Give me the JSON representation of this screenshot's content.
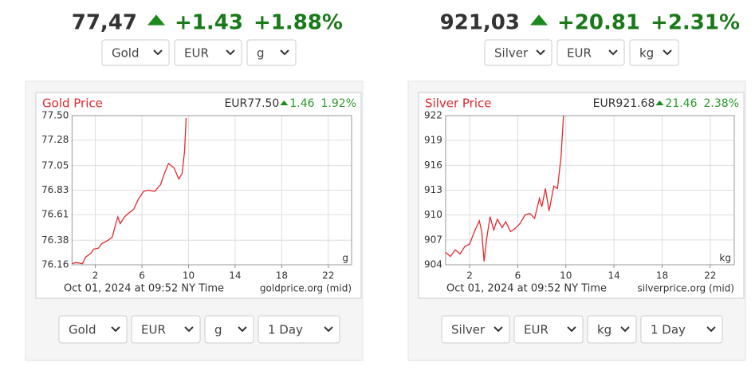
{
  "widgets": [
    {
      "price": "77,47",
      "change": "+1.43",
      "change_pct": "+1.88%",
      "selects": [
        "Gold",
        "EUR",
        "g"
      ],
      "bottom_selects": [
        "Gold",
        "EUR",
        "g",
        "1 Day"
      ]
    },
    {
      "price": "921,03",
      "change": "+20.81",
      "change_pct": "+2.31%",
      "selects": [
        "Silver",
        "EUR",
        "kg"
      ],
      "bottom_selects": [
        "Silver",
        "EUR",
        "kg",
        "1 Day"
      ]
    }
  ],
  "chart_data": [
    {
      "type": "line",
      "title": "Gold Price",
      "header_price": "EUR77.50",
      "header_change": "1.46",
      "header_pct": "1.92%",
      "unit": "g",
      "footer_left": "Oct 01, 2024 at 09:52 NY Time",
      "footer_right": "goldprice.org (mid)",
      "color": "#e8282b",
      "x": [
        0,
        0.34,
        0.9,
        1.17,
        1.6,
        1.86,
        2.28,
        2.55,
        3.1,
        3.45,
        3.66,
        3.93,
        4.14,
        4.5,
        4.83,
        5.3,
        5.7,
        6.14,
        6.55,
        7.1,
        7.6,
        7.93,
        8.28,
        8.76,
        9.17,
        9.45,
        9.66,
        9.8
      ],
      "values": [
        76.17,
        76.18,
        76.17,
        76.23,
        76.26,
        76.3,
        76.31,
        76.35,
        76.38,
        76.41,
        76.49,
        76.59,
        76.53,
        76.59,
        76.62,
        76.66,
        76.75,
        76.82,
        76.83,
        76.82,
        76.88,
        76.98,
        77.07,
        77.03,
        76.93,
        76.98,
        77.18,
        77.48
      ],
      "xlim": [
        0,
        24
      ],
      "xticks": [
        2,
        6,
        10,
        14,
        18,
        22
      ],
      "ylim": [
        76.16,
        77.5
      ],
      "yticks": [
        76.16,
        76.38,
        76.61,
        76.83,
        77.05,
        77.28,
        {
          "value": 77.5,
          "label": "77.50"
        }
      ],
      "grid": true
    },
    {
      "type": "line",
      "title": "Silver Price",
      "header_price": "EUR921.68",
      "header_change": "21.46",
      "header_pct": "2.38%",
      "unit": "kg",
      "footer_left": "Oct 01, 2024 at 09:52 NY Time",
      "footer_right": "silverprice.org (mid)",
      "color": "#e8282b",
      "x": [
        0,
        0.4,
        0.8,
        1.2,
        1.6,
        2.0,
        2.4,
        2.8,
        3.0,
        3.2,
        3.4,
        3.7,
        4.0,
        4.3,
        4.7,
        5.0,
        5.4,
        5.8,
        6.2,
        6.6,
        7.0,
        7.4,
        7.8,
        8.0,
        8.3,
        8.6,
        9.0,
        9.3,
        9.6,
        9.8
      ],
      "values": [
        905.5,
        905,
        905.8,
        905.3,
        906.2,
        906.5,
        908,
        909.3,
        908,
        904.4,
        907,
        909.8,
        908.2,
        909.5,
        908.5,
        909.2,
        908,
        908.4,
        909,
        910,
        910.2,
        909.6,
        912,
        911,
        913.2,
        910.5,
        913.5,
        913.2,
        917,
        922
      ],
      "xlim": [
        0,
        24
      ],
      "xticks": [
        2,
        6,
        10,
        14,
        18,
        22
      ],
      "ylim": [
        904,
        922
      ],
      "yticks": [
        904,
        907,
        910,
        913,
        916,
        919,
        922
      ],
      "grid": true
    }
  ]
}
